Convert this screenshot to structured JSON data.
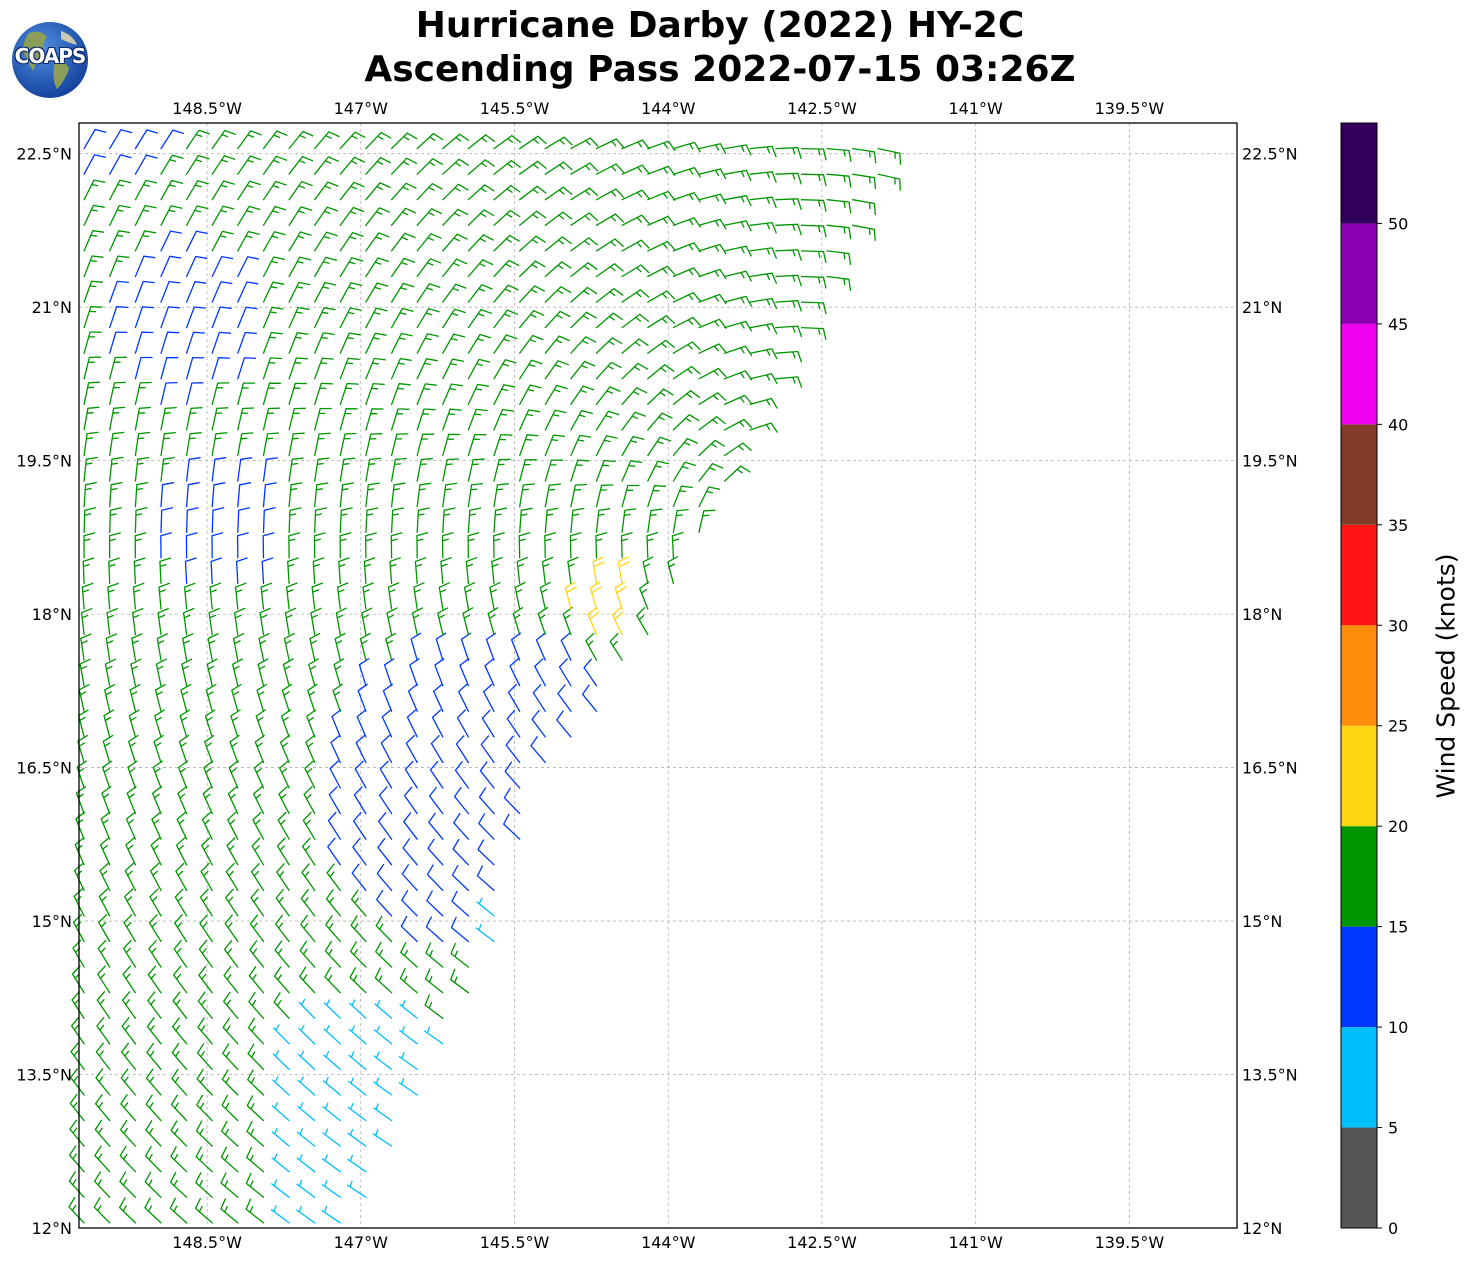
{
  "header": {
    "title_line1": "Hurricane Darby (2022) HY-2C",
    "title_line2": "Ascending Pass 2022-07-15 03:26Z",
    "logo_text": "COAPS"
  },
  "map": {
    "lon_range": [
      -149.75,
      -138.45
    ],
    "lat_range": [
      12.0,
      22.8
    ],
    "lon_ticks": [
      {
        "value": -148.5,
        "label": "148.5°W"
      },
      {
        "value": -147.0,
        "label": "147°W"
      },
      {
        "value": -145.5,
        "label": "145.5°W"
      },
      {
        "value": -144.0,
        "label": "144°W"
      },
      {
        "value": -142.5,
        "label": "142.5°W"
      },
      {
        "value": -141.0,
        "label": "141°W"
      },
      {
        "value": -139.5,
        "label": "139.5°W"
      }
    ],
    "lat_ticks": [
      {
        "value": 12.0,
        "label": "12°N"
      },
      {
        "value": 13.5,
        "label": "13.5°N"
      },
      {
        "value": 15.0,
        "label": "15°N"
      },
      {
        "value": 16.5,
        "label": "16.5°N"
      },
      {
        "value": 18.0,
        "label": "18°N"
      },
      {
        "value": 19.5,
        "label": "19.5°N"
      },
      {
        "value": 21.0,
        "label": "21°N"
      },
      {
        "value": 22.5,
        "label": "22.5°N"
      }
    ],
    "gridlines": true,
    "swath_east_edge": [
      {
        "lat": 22.8,
        "lon": -141.6
      },
      {
        "lat": 18.2,
        "lon": -143.9
      },
      {
        "lat": 17.6,
        "lon": -144.3
      },
      {
        "lat": 16.9,
        "lon": -144.8
      },
      {
        "lat": 16.0,
        "lon": -145.4
      },
      {
        "lat": 14.9,
        "lon": -145.6
      },
      {
        "lat": 13.5,
        "lon": -146.3
      },
      {
        "lat": 12.0,
        "lon": -147.1
      }
    ]
  },
  "wind_bins": [
    {
      "min": 0,
      "max": 5,
      "color": "#555555"
    },
    {
      "min": 5,
      "max": 10,
      "color": "#00bfff"
    },
    {
      "min": 10,
      "max": 15,
      "color": "#0037ff"
    },
    {
      "min": 15,
      "max": 20,
      "color": "#009600"
    },
    {
      "min": 20,
      "max": 25,
      "color": "#ffd614"
    },
    {
      "min": 25,
      "max": 30,
      "color": "#ff8c0a"
    },
    {
      "min": 30,
      "max": 35,
      "color": "#ff1414"
    },
    {
      "min": 35,
      "max": 40,
      "color": "#823c28"
    },
    {
      "min": 40,
      "max": 45,
      "color": "#f000f0"
    },
    {
      "min": 45,
      "max": 50,
      "color": "#8c00b4"
    },
    {
      "min": 50,
      "max": 55,
      "color": "#32005a"
    }
  ],
  "colorbar": {
    "label": "Wind Speed (knots)",
    "ticks": [
      {
        "value": 0,
        "label": "0"
      },
      {
        "value": 5,
        "label": "5"
      },
      {
        "value": 10,
        "label": "10"
      },
      {
        "value": 15,
        "label": "15"
      },
      {
        "value": 20,
        "label": "20"
      },
      {
        "value": 25,
        "label": "25"
      },
      {
        "value": 30,
        "label": "30"
      },
      {
        "value": 35,
        "label": "35"
      },
      {
        "value": 40,
        "label": "40"
      },
      {
        "value": 45,
        "label": "45"
      },
      {
        "value": 50,
        "label": "50"
      }
    ],
    "max": 55
  },
  "wind_field": {
    "center": {
      "lat": 18.6,
      "lon": -142.8
    },
    "speed_zones": [
      {
        "speed": 7,
        "near": {
          "lat": 13.3,
          "lon": -146.9
        },
        "radius_deg": 1.0
      },
      {
        "speed": 7,
        "near": {
          "lat": 12.3,
          "lon": -147.1
        },
        "radius_deg": 0.8
      },
      {
        "speed": 7,
        "near": {
          "lat": 14.9,
          "lon": -145.6
        },
        "radius_deg": 0.3
      },
      {
        "speed": 22,
        "near": {
          "lat": 18.1,
          "lon": -144.6
        },
        "radius_deg": 0.4
      },
      {
        "speed": 13,
        "near": {
          "lat": 16.2,
          "lon": -145.8
        },
        "radius_deg": 1.6
      },
      {
        "speed": 13,
        "near": {
          "lat": 18.8,
          "lon": -148.4
        },
        "radius_deg": 0.7
      },
      {
        "speed": 13,
        "near": {
          "lat": 20.8,
          "lon": -148.8
        },
        "radius_deg": 0.8
      },
      {
        "speed": 13,
        "near": {
          "lat": 22.6,
          "lon": -149.4
        },
        "radius_deg": 0.5
      }
    ]
  }
}
